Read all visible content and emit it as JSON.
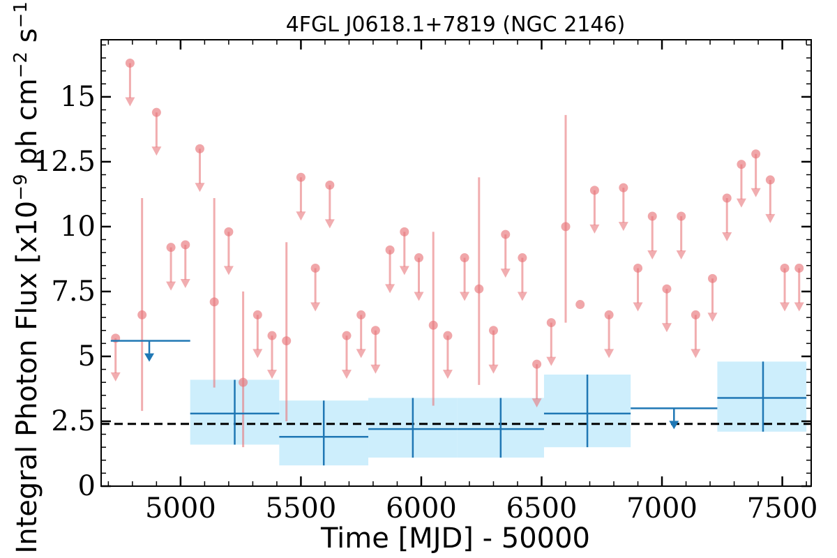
{
  "chart_data": {
    "type": "scatter",
    "title": "4FGL J0618.1+7819 (NGC 2146)",
    "xlabel": "Time [MJD] - 50000",
    "ylabel": "Integral Photon Flux [x10",
    "ylabel_exp1": "−9",
    "ylabel_mid": " ph cm",
    "ylabel_exp2": "−2",
    "ylabel_mid2": " s",
    "ylabel_exp3": "−1",
    "ylabel_end": "]",
    "xlim": [
      4670,
      7620
    ],
    "ylim": [
      0,
      17.2
    ],
    "x_ticks": [
      5000,
      5500,
      6000,
      6500,
      7000,
      7500
    ],
    "x_tick_labels": [
      "5000",
      "5500",
      "6000",
      "6500",
      "7000",
      "7500"
    ],
    "y_ticks": [
      0,
      2.5,
      5,
      7.5,
      10,
      12.5,
      15
    ],
    "y_tick_labels": [
      "0",
      "2.5",
      "5",
      "7.5",
      "10",
      "12.5",
      "15"
    ],
    "reference_line": 2.4,
    "colors": {
      "short_bins": "#e8777b",
      "long_bins": "#1f77b4",
      "band_fill": "#cdeefc",
      "reference": "#000000"
    },
    "short_bins": {
      "upper_limits": [
        [
          4730,
          5.7
        ],
        [
          4790,
          16.3
        ],
        [
          4900,
          14.4
        ],
        [
          4960,
          9.2
        ],
        [
          5020,
          9.3
        ],
        [
          5080,
          13.0
        ],
        [
          5200,
          9.8
        ],
        [
          5320,
          6.6
        ],
        [
          5380,
          5.8
        ],
        [
          5500,
          11.9
        ],
        [
          5560,
          8.4
        ],
        [
          5620,
          11.6
        ],
        [
          5690,
          5.8
        ],
        [
          5750,
          6.6
        ],
        [
          5810,
          6.0
        ],
        [
          5870,
          9.1
        ],
        [
          5930,
          9.8
        ],
        [
          5990,
          8.8
        ],
        [
          6110,
          5.8
        ],
        [
          6180,
          8.8
        ],
        [
          6300,
          6.0
        ],
        [
          6350,
          9.7
        ],
        [
          6420,
          8.8
        ],
        [
          6480,
          4.7
        ],
        [
          6540,
          6.3
        ],
        [
          6720,
          11.4
        ],
        [
          6780,
          6.6
        ],
        [
          6840,
          11.5
        ],
        [
          6900,
          8.4
        ],
        [
          6960,
          10.4
        ],
        [
          7020,
          7.6
        ],
        [
          7080,
          10.4
        ],
        [
          7140,
          6.6
        ],
        [
          7210,
          8.0
        ],
        [
          7270,
          11.1
        ],
        [
          7330,
          12.4
        ],
        [
          7390,
          12.8
        ],
        [
          7450,
          11.8
        ],
        [
          7510,
          8.4
        ],
        [
          7570,
          8.4
        ]
      ],
      "detections": [
        [
          4840,
          6.6,
          2.9,
          11.1
        ],
        [
          5140,
          7.1,
          3.8,
          11.1
        ],
        [
          5260,
          4.0,
          1.5,
          7.5
        ],
        [
          5440,
          5.6,
          2.5,
          9.4
        ],
        [
          6050,
          6.2,
          3.1,
          9.8
        ],
        [
          6240,
          7.6,
          3.9,
          11.9
        ],
        [
          6600,
          10.0,
          6.3,
          14.3
        ],
        [
          6660,
          7.0,
          null,
          null
        ]
      ]
    },
    "long_bins": {
      "upper_limits": [
        {
          "x0": 4710,
          "x1": 5040,
          "y": 5.6,
          "x_arrow": 4870
        },
        {
          "x0": 6870,
          "x1": 7230,
          "y": 3.0,
          "x_arrow": 7050
        }
      ],
      "detections": [
        {
          "x0": 5040,
          "x1": 5410,
          "y": 2.8,
          "ylo": 1.6,
          "yhi": 4.1,
          "xc": 5225
        },
        {
          "x0": 5410,
          "x1": 5780,
          "y": 1.9,
          "ylo": 0.8,
          "yhi": 3.3,
          "xc": 5595
        },
        {
          "x0": 5780,
          "x1": 6150,
          "y": 2.2,
          "ylo": 1.1,
          "yhi": 3.4,
          "xc": 5965
        },
        {
          "x0": 6150,
          "x1": 6510,
          "y": 2.2,
          "ylo": 1.1,
          "yhi": 3.4,
          "xc": 6330
        },
        {
          "x0": 6510,
          "x1": 6870,
          "y": 2.8,
          "ylo": 1.5,
          "yhi": 4.3,
          "xc": 6690
        },
        {
          "x0": 7230,
          "x1": 7600,
          "y": 3.4,
          "ylo": 2.1,
          "yhi": 4.8,
          "xc": 7420
        }
      ]
    }
  }
}
